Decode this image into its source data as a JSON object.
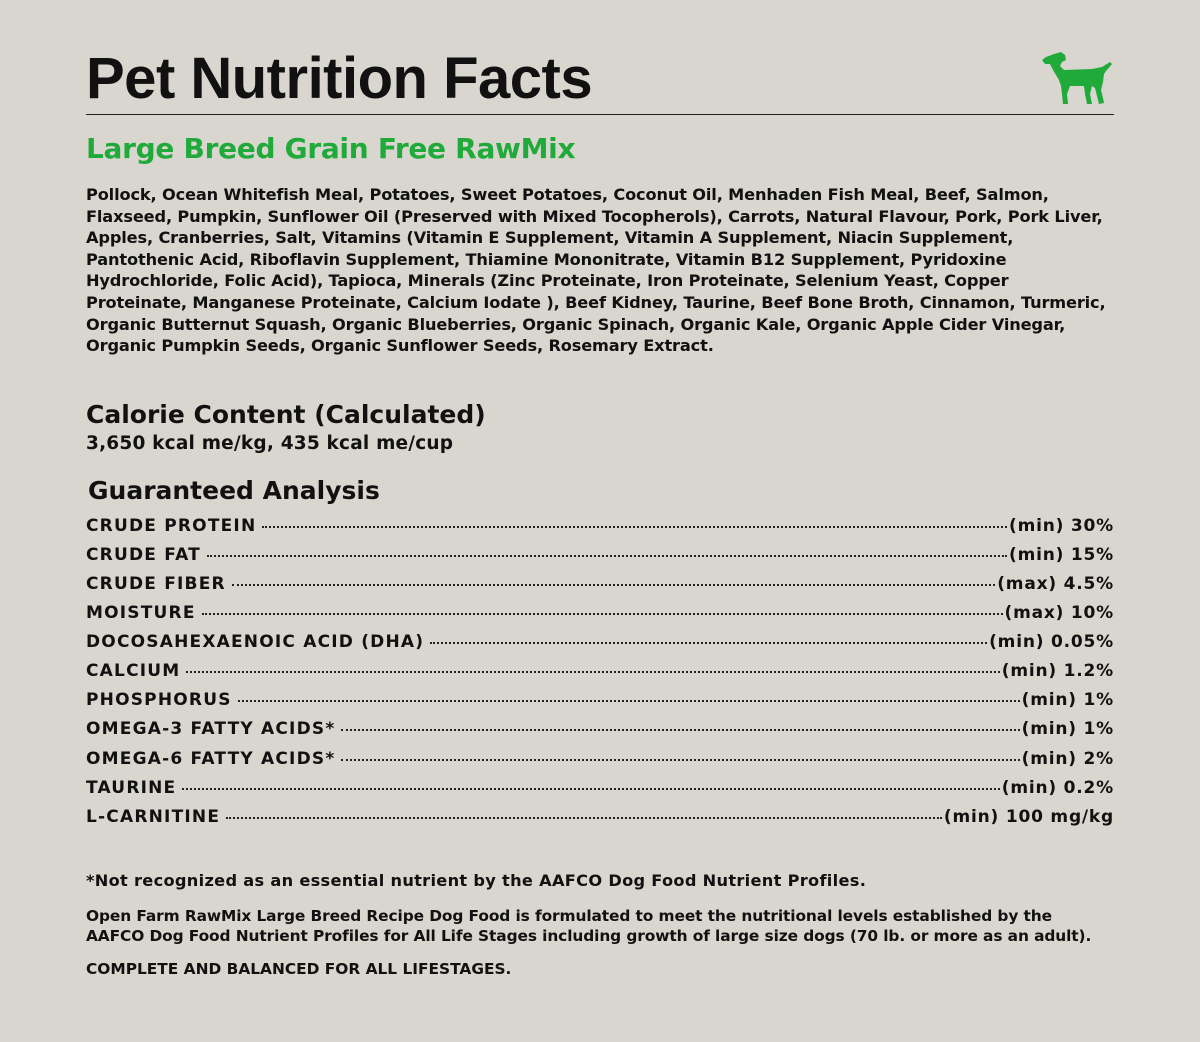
{
  "header": {
    "title": "Pet Nutrition Facts",
    "logo_icon": "dog-icon",
    "logo_color": "#1faa3a"
  },
  "product": {
    "name": "Large Breed Grain Free RawMix",
    "name_color": "#1faa3a"
  },
  "ingredients": "Pollock, Ocean Whitefish Meal, Potatoes, Sweet Potatoes, Coconut Oil, Menhaden Fish Meal, Beef, Salmon, Flaxseed, Pumpkin, Sunflower Oil (Preserved with Mixed Tocopherols), Carrots, Natural Flavour, Pork, Pork Liver, Apples, Cranberries, Salt, Vitamins (Vitamin E Supplement, Vitamin A Supplement, Niacin Supplement, Pantothenic Acid, Riboflavin Supplement, Thiamine Mononitrate, Vitamin B12 Supplement, Pyridoxine Hydrochloride, Folic Acid), Tapioca, Minerals (Zinc Proteinate, Iron Proteinate, Selenium Yeast, Copper Proteinate, Manganese Proteinate, Calcium Iodate ), Beef Kidney, Taurine, Beef Bone Broth, Cinnamon, Turmeric, Organic Butternut Squash, Organic Blueberries, Organic Spinach, Organic Kale, Organic Apple Cider Vinegar, Organic Pumpkin Seeds, Organic Sunflower Seeds, Rosemary Extract.",
  "calorie": {
    "title": "Calorie Content (Calculated)",
    "value": "3,650 kcal me/kg, 435 kcal me/cup"
  },
  "guaranteed_analysis": {
    "title": "Guaranteed Analysis",
    "rows": [
      {
        "name": "CRUDE PROTEIN",
        "value": "(min) 30%"
      },
      {
        "name": "CRUDE FAT",
        "value": "(min) 15%"
      },
      {
        "name": "CRUDE FIBER",
        "value": "(max) 4.5%"
      },
      {
        "name": "MOISTURE",
        "value": "(max) 10%"
      },
      {
        "name": "DOCOSAHEXAENOIC ACID (DHA)",
        "value": "(min) 0.05%"
      },
      {
        "name": "CALCIUM",
        "value": "(min) 1.2%"
      },
      {
        "name": "PHOSPHORUS",
        "value": "(min) 1%"
      },
      {
        "name": "OMEGA-3 FATTY ACIDS*",
        "value": "(min) 1%"
      },
      {
        "name": "OMEGA-6 FATTY ACIDS*",
        "value": "(min) 2%"
      },
      {
        "name": "TAURINE",
        "value": "(min) 0.2%"
      },
      {
        "name": "L-CARNITINE",
        "value": "(min) 100 mg/kg"
      }
    ]
  },
  "footnote": "*Not recognized as an essential nutrient by the AAFCO Dog Food Nutrient Profiles.",
  "statement": "Open Farm RawMix Large Breed Recipe Dog Food is formulated to meet the nutritional levels established by the AAFCO Dog Food Nutrient Profiles for All Life Stages including growth of large size dogs (70 lb. or more as an adult).",
  "complete_statement": "COMPLETE AND BALANCED FOR ALL LIFESTAGES."
}
